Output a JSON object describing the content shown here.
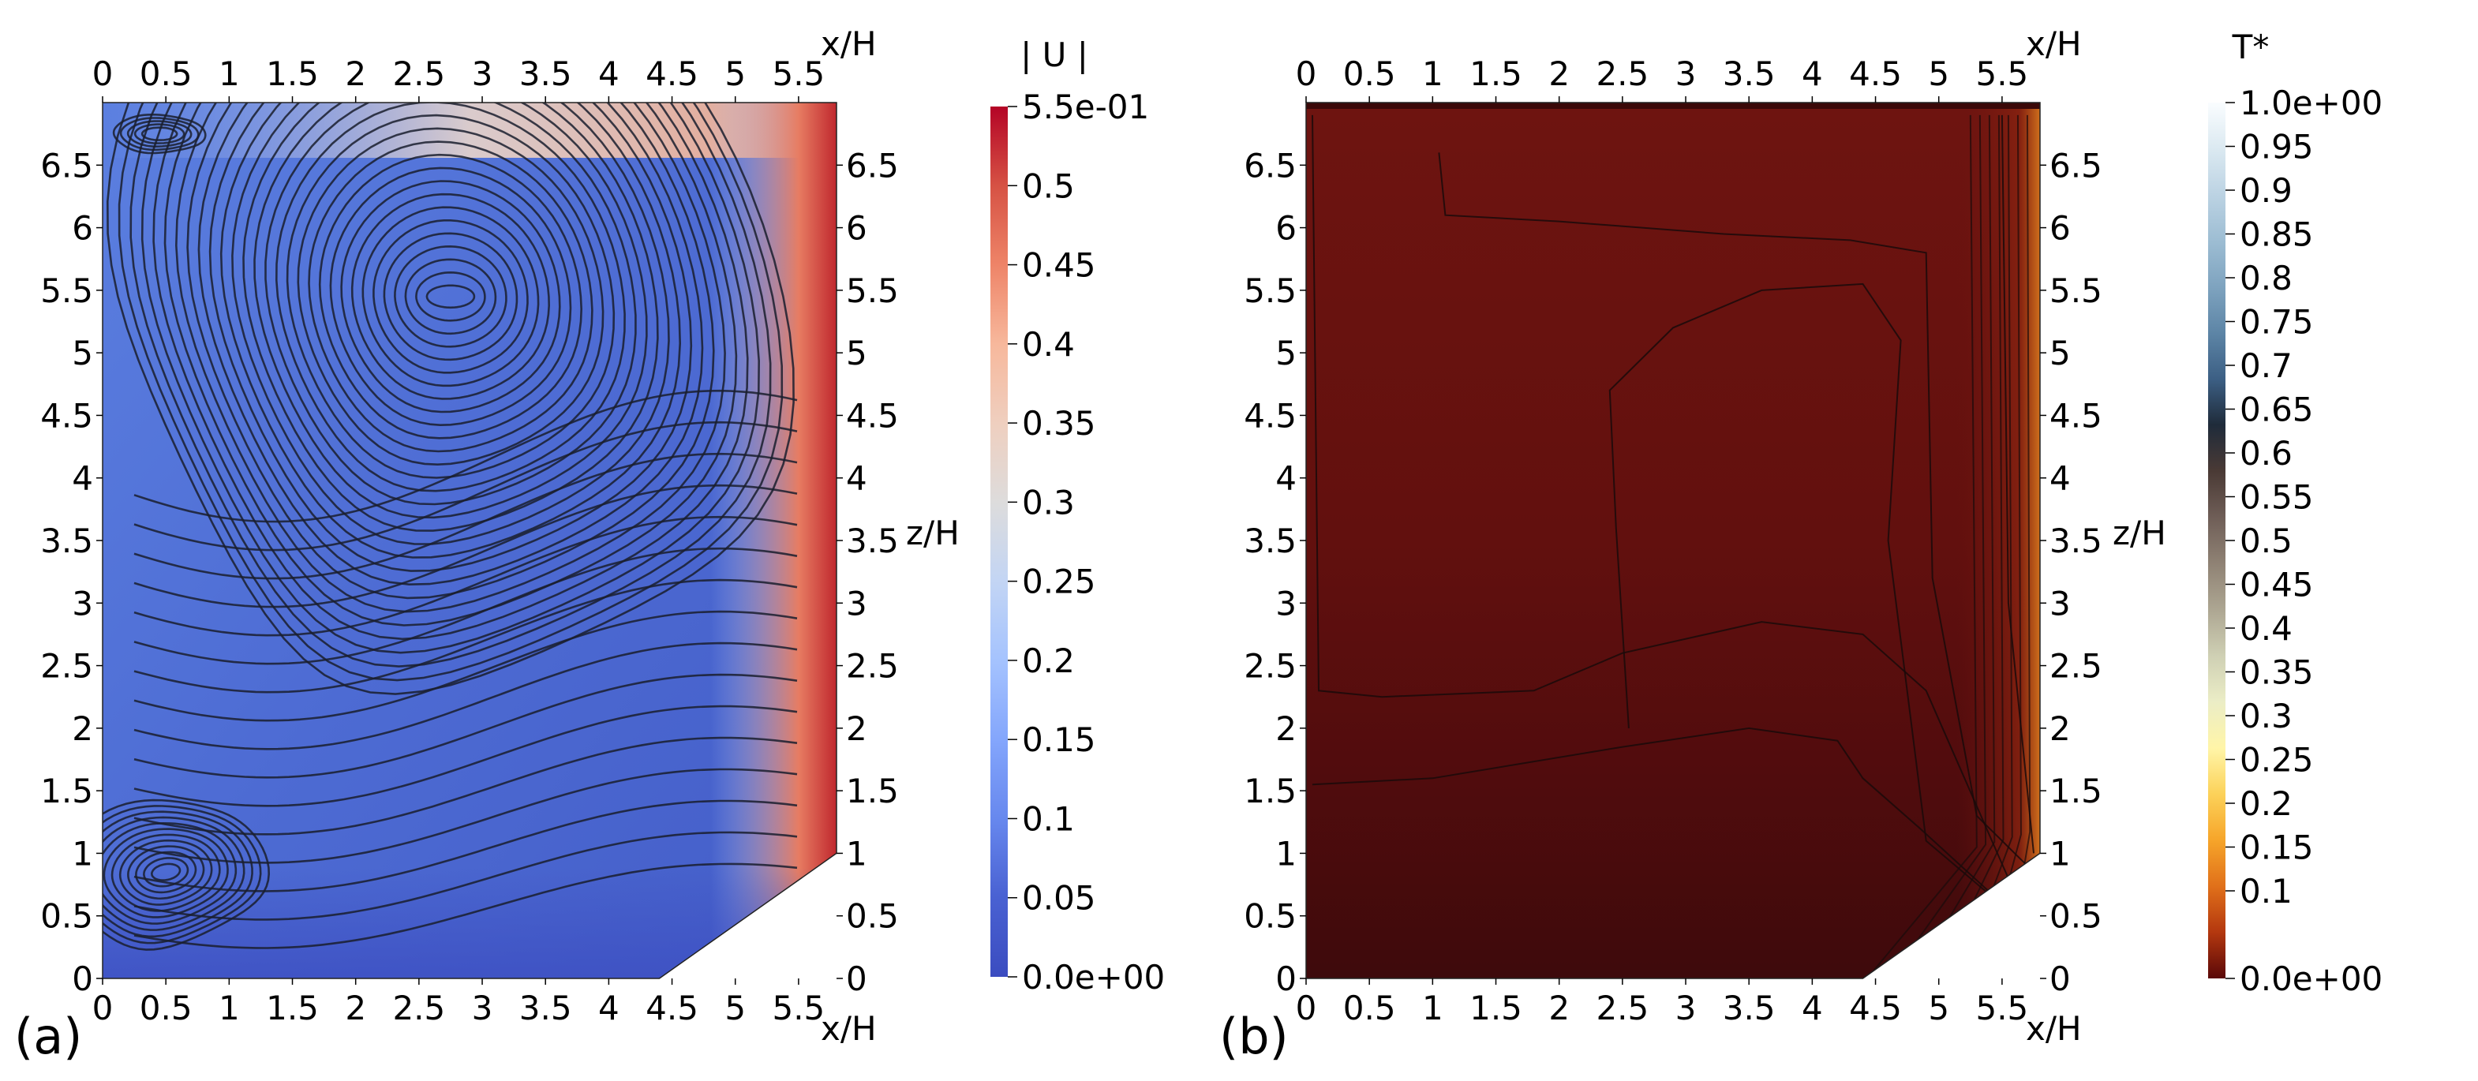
{
  "chart_data": [
    {
      "type": "heatmap",
      "panel_label": "(a)",
      "field": "velocity magnitude with streamlines",
      "xlabel": "x/H",
      "ylabel": "z/H",
      "xlim": [
        0,
        5.8
      ],
      "ylim": [
        0,
        7.0
      ],
      "x_ticks": [
        "0",
        "0.5",
        "1",
        "1.5",
        "2",
        "2.5",
        "3",
        "3.5",
        "4",
        "4.5",
        "5",
        "5.5"
      ],
      "y_ticks": [
        "0",
        "0.5",
        "1",
        "1.5",
        "2",
        "2.5",
        "3",
        "3.5",
        "4",
        "4.5",
        "5",
        "5.5",
        "6",
        "6.5"
      ],
      "colorbar": {
        "title": "| U |",
        "range": [
          0,
          0.55
        ],
        "labels": [
          "5.5e-01",
          "0.5",
          "0.45",
          "0.4",
          "0.35",
          "0.3",
          "0.25",
          "0.2",
          "0.15",
          "0.1",
          "0.05",
          "0.0e+00"
        ],
        "colors": [
          "#b40426",
          "#d65244",
          "#ee8468",
          "#f7b89c",
          "#efcfbf",
          "#dddcdc",
          "#c3d5f4",
          "#a5c3fe",
          "#84a6fc",
          "#6788ee",
          "#4961d2",
          "#3b4cc0"
        ]
      },
      "geometry_outline": [
        [
          0,
          0
        ],
        [
          4.4,
          0
        ],
        [
          5.8,
          1.0
        ],
        [
          5.8,
          7.0
        ],
        [
          0,
          7.0
        ]
      ],
      "vortices": [
        {
          "center": [
            2.75,
            5.45
          ],
          "region": "upper main vortex"
        },
        {
          "center": [
            0.5,
            0.85
          ],
          "region": "lower-left corner vortex"
        },
        {
          "center": [
            0.45,
            6.75
          ],
          "region": "upper-left corner vortex"
        }
      ]
    },
    {
      "type": "heatmap",
      "panel_label": "(b)",
      "field": "dimensionless temperature with isotherms",
      "xlabel": "x/H",
      "ylabel": "z/H",
      "xlim": [
        0,
        5.8
      ],
      "ylim": [
        0,
        7.0
      ],
      "x_ticks": [
        "0",
        "0.5",
        "1",
        "1.5",
        "2",
        "2.5",
        "3",
        "3.5",
        "4",
        "4.5",
        "5",
        "5.5"
      ],
      "y_ticks": [
        "0",
        "0.5",
        "1",
        "1.5",
        "2",
        "2.5",
        "3",
        "3.5",
        "4",
        "4.5",
        "5",
        "5.5",
        "6",
        "6.5"
      ],
      "colorbar": {
        "title": "T*",
        "range": [
          0,
          1.0
        ],
        "labels": [
          "1.0e+00",
          "0.95",
          "0.9",
          "0.85",
          "0.8",
          "0.75",
          "0.7",
          "0.65",
          "0.6",
          "0.55",
          "0.5",
          "0.45",
          "0.4",
          "0.35",
          "0.3",
          "0.25",
          "0.2",
          "0.15",
          "0.1",
          "0.0e+00"
        ],
        "colors": [
          "#fafdff",
          "#dbe9f1",
          "#bcd3e3",
          "#9dbdd3",
          "#7ea3bf",
          "#5d85a6",
          "#3c5f84",
          "#1f2b3a",
          "#4a3a35",
          "#6f5e57",
          "#8f8274",
          "#ada692",
          "#cfd0b4",
          "#ebedc6",
          "#fff5a8",
          "#fcd25a",
          "#f6a52a",
          "#e0701a",
          "#b4380f",
          "#5a0808"
        ]
      },
      "geometry_outline": [
        [
          0,
          0
        ],
        [
          4.4,
          0
        ],
        [
          5.8,
          1.0
        ],
        [
          5.8,
          7.0
        ],
        [
          0,
          7.0
        ]
      ]
    }
  ]
}
